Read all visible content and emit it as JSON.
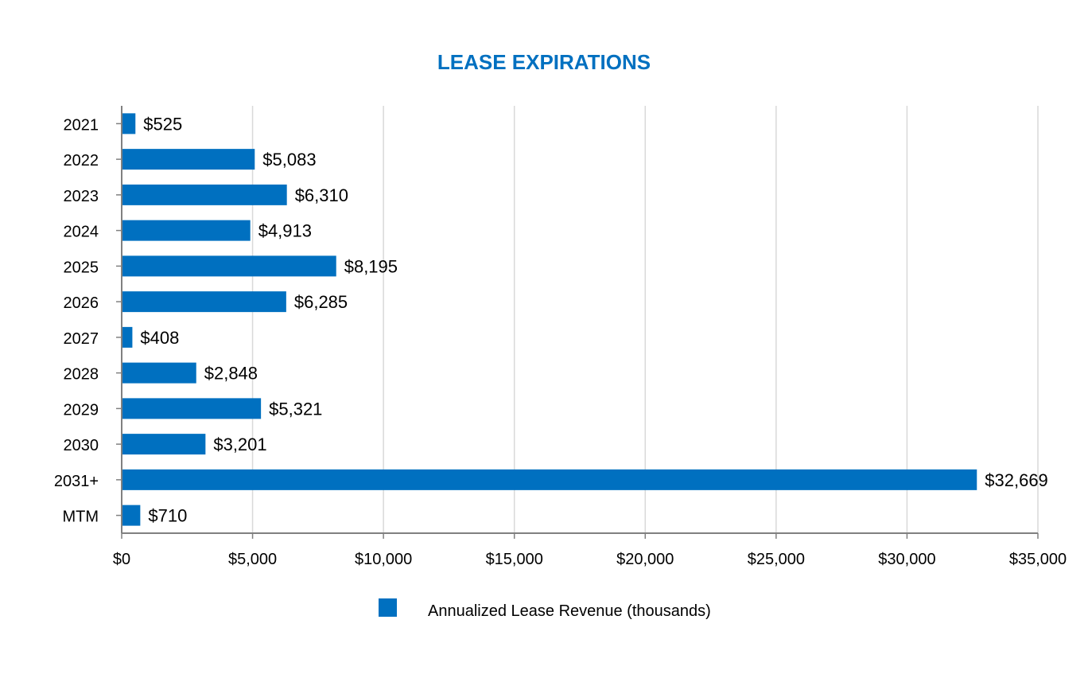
{
  "chart_data": {
    "type": "bar",
    "orientation": "horizontal",
    "title": "LEASE EXPIRATIONS",
    "categories": [
      "2021",
      "2022",
      "2023",
      "2024",
      "2025",
      "2026",
      "2027",
      "2028",
      "2029",
      "2030",
      "2031+",
      "MTM"
    ],
    "series": [
      {
        "name": "Annualized Lease Revenue (thousands)",
        "values": [
          525,
          5083,
          6310,
          4913,
          8195,
          6285,
          408,
          2848,
          5321,
          3201,
          32669,
          710
        ],
        "labels": [
          "$525",
          "$5,083",
          "$6,310",
          "$4,913",
          "$8,195",
          "$6,285",
          "$408",
          "$2,848",
          "$5,321",
          "$3,201",
          "$32,669",
          "$710"
        ]
      }
    ],
    "xlim": [
      0,
      35000
    ],
    "xticks": [
      0,
      5000,
      10000,
      15000,
      20000,
      25000,
      30000,
      35000
    ],
    "xtick_labels": [
      "$0",
      "$5,000",
      "$10,000",
      "$15,000",
      "$20,000",
      "$25,000",
      "$30,000",
      "$35,000"
    ],
    "xlabel": "",
    "ylabel": "",
    "grid": "vertical",
    "legend_position": "bottom"
  },
  "colors": {
    "bar": "#0070C0",
    "title": "#0070C0",
    "grid": "#D9D9D9",
    "axis": "#808080",
    "text": "#000000"
  }
}
